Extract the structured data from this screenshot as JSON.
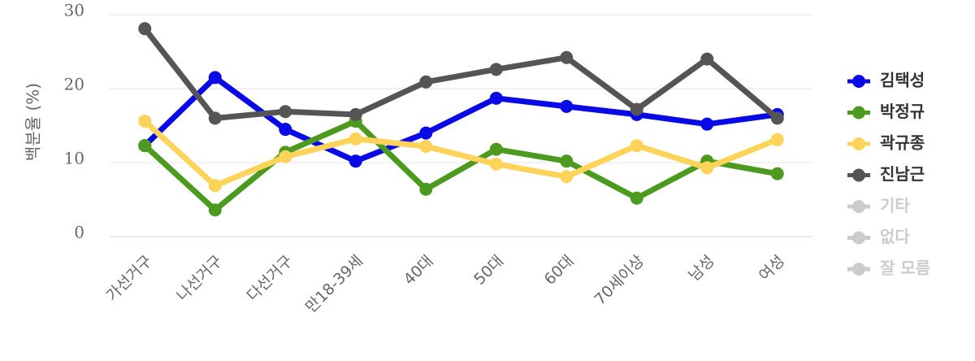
{
  "chart_data": {
    "type": "line",
    "y_label": "백분율 (%)",
    "categories": [
      "가선거구",
      "나선거구",
      "다선거구",
      "만18-39세",
      "40대",
      "50대",
      "60대",
      "70세이상",
      "남성",
      "여성"
    ],
    "ylim": [
      0,
      30
    ],
    "yticks": [
      0,
      10,
      20,
      30
    ],
    "grid": true,
    "legend": "right",
    "series": [
      {
        "name": "김택성",
        "color": "#0a0ae6",
        "values": [
          12.3,
          21.5,
          14.5,
          10.2,
          14.0,
          18.7,
          17.6,
          16.5,
          15.2,
          16.5
        ]
      },
      {
        "name": "박정규",
        "color": "#4c9a1f",
        "values": [
          12.3,
          3.6,
          11.4,
          15.6,
          6.4,
          11.8,
          10.2,
          5.2,
          10.2,
          8.5
        ]
      },
      {
        "name": "곽규종",
        "color": "#fdd35a",
        "values": [
          15.6,
          6.9,
          10.8,
          13.2,
          12.2,
          9.8,
          8.1,
          12.3,
          9.3,
          13.1
        ]
      },
      {
        "name": "진남근",
        "color": "#555555",
        "values": [
          28.1,
          16.0,
          16.9,
          16.5,
          20.9,
          22.6,
          24.2,
          17.2,
          24.0,
          16.0
        ]
      },
      {
        "name": "기타",
        "color": "#cccccc",
        "hidden": true,
        "values": [
          null,
          null,
          null,
          null,
          null,
          null,
          null,
          null,
          null,
          null
        ]
      },
      {
        "name": "없다",
        "color": "#cccccc",
        "hidden": true,
        "values": [
          null,
          null,
          null,
          null,
          null,
          null,
          null,
          null,
          null,
          null
        ]
      },
      {
        "name": "잘 모름",
        "color": "#cccccc",
        "hidden": true,
        "values": [
          null,
          null,
          null,
          null,
          null,
          null,
          null,
          null,
          null,
          null
        ]
      }
    ]
  }
}
